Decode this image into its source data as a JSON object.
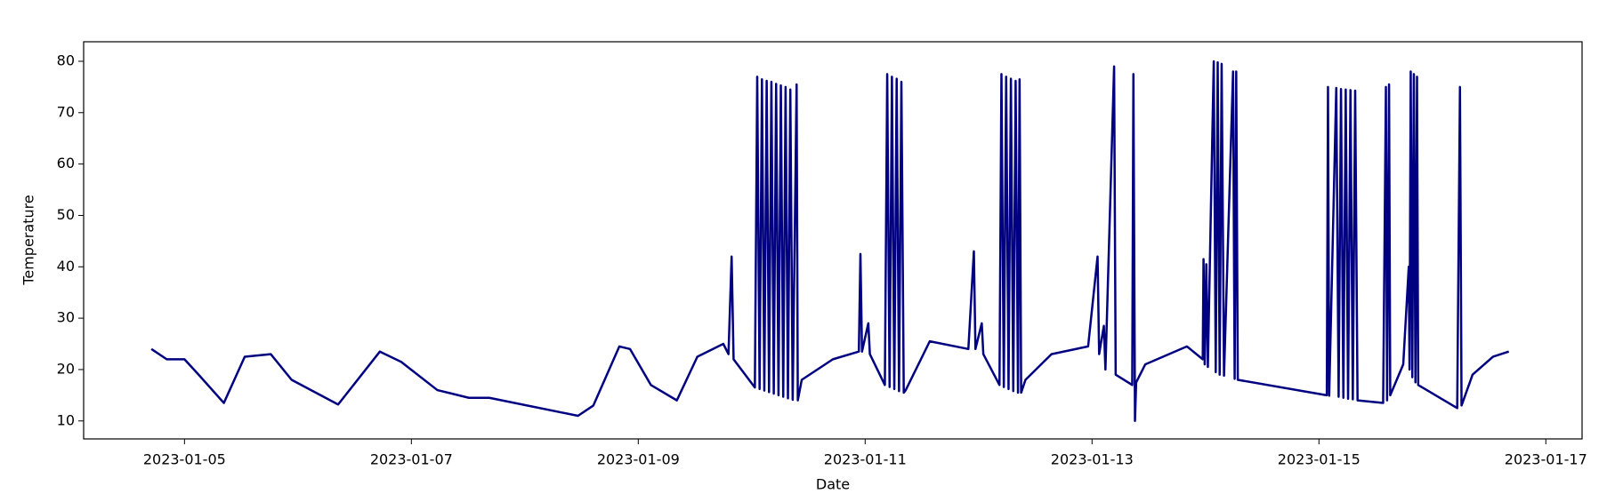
{
  "chart_data": {
    "type": "line",
    "xlabel": "Date",
    "ylabel": "Temperature",
    "xlim": [
      "2023-01-04T02:40",
      "2023-01-17T07:40"
    ],
    "xticks": [
      "2023-01-05",
      "2023-01-07",
      "2023-01-09",
      "2023-01-11",
      "2023-01-13",
      "2023-01-15",
      "2023-01-17"
    ],
    "ylim": [
      6.5,
      83.8
    ],
    "yticks": [
      10,
      20,
      30,
      40,
      50,
      60,
      70,
      80
    ],
    "grid": false,
    "x": [
      "2023-01-04T17:00",
      "2023-01-04T20:15",
      "2023-01-05T00:00",
      "2023-01-05T03:00",
      "2023-01-05T08:20",
      "2023-01-05T12:45",
      "2023-01-05T18:15",
      "2023-01-05T22:40",
      "2023-01-06T08:30",
      "2023-01-06T17:20",
      "2023-01-06T21:50",
      "2023-01-07T05:30",
      "2023-01-07T12:10",
      "2023-01-07T16:30",
      "2023-01-08T11:15",
      "2023-01-08T14:30",
      "2023-01-08T20:00",
      "2023-01-08T22:15",
      "2023-01-09T02:40",
      "2023-01-09T08:10",
      "2023-01-09T12:30",
      "2023-01-09T18:00",
      "2023-01-09T19:05",
      "2023-01-09T19:45",
      "2023-01-09T20:10",
      "2023-01-10T00:40",
      "2023-01-10T01:10",
      "2023-01-10T01:40",
      "2023-01-10T02:10",
      "2023-01-10T02:40",
      "2023-01-10T03:10",
      "2023-01-10T03:40",
      "2023-01-10T04:10",
      "2023-01-10T04:40",
      "2023-01-10T05:10",
      "2023-01-10T05:40",
      "2023-01-10T06:10",
      "2023-01-10T06:40",
      "2023-01-10T07:10",
      "2023-01-10T07:40",
      "2023-01-10T08:10",
      "2023-01-10T08:40",
      "2023-01-10T09:30",
      "2023-01-10T09:45",
      "2023-01-10T10:35",
      "2023-01-10T17:10",
      "2023-01-10T22:40",
      "2023-01-10T23:00",
      "2023-01-10T23:20",
      "2023-01-11T00:40",
      "2023-01-11T01:00",
      "2023-01-11T04:10",
      "2023-01-11T04:40",
      "2023-01-11T05:10",
      "2023-01-11T05:40",
      "2023-01-11T06:10",
      "2023-01-11T06:40",
      "2023-01-11T07:10",
      "2023-01-11T07:40",
      "2023-01-11T08:10",
      "2023-01-11T08:35",
      "2023-01-11T13:40",
      "2023-01-11T21:50",
      "2023-01-11T23:00",
      "2023-01-11T23:20",
      "2023-01-12T00:40",
      "2023-01-12T01:00",
      "2023-01-12T04:25",
      "2023-01-12T04:50",
      "2023-01-12T05:20",
      "2023-01-12T05:50",
      "2023-01-12T06:20",
      "2023-01-12T06:50",
      "2023-01-12T07:20",
      "2023-01-12T07:50",
      "2023-01-12T08:20",
      "2023-01-12T08:40",
      "2023-01-12T09:00",
      "2023-01-12T09:55",
      "2023-01-12T15:25",
      "2023-01-12T23:10",
      "2023-01-13T01:10",
      "2023-01-13T01:30",
      "2023-01-13T02:30",
      "2023-01-13T02:50",
      "2023-01-13T04:40",
      "2023-01-13T05:00",
      "2023-01-13T08:30",
      "2023-01-13T08:45",
      "2023-01-13T09:05",
      "2023-01-13T09:20",
      "2023-01-13T11:15",
      "2023-01-13T20:05",
      "2023-01-13T23:25",
      "2023-01-13T23:35",
      "2023-01-13T23:50",
      "2023-01-14T00:10",
      "2023-01-14T00:30",
      "2023-01-14T01:45",
      "2023-01-14T02:10",
      "2023-01-14T02:35",
      "2023-01-14T03:00",
      "2023-01-14T03:25",
      "2023-01-14T03:55",
      "2023-01-14T05:50",
      "2023-01-14T06:10",
      "2023-01-14T06:30",
      "2023-01-14T06:50",
      "2023-01-15T01:40",
      "2023-01-15T01:55",
      "2023-01-15T02:10",
      "2023-01-15T03:40",
      "2023-01-15T04:10",
      "2023-01-15T04:40",
      "2023-01-15T05:10",
      "2023-01-15T05:40",
      "2023-01-15T06:10",
      "2023-01-15T06:40",
      "2023-01-15T07:10",
      "2023-01-15T07:40",
      "2023-01-15T08:10",
      "2023-01-15T13:35",
      "2023-01-15T14:10",
      "2023-01-15T14:25",
      "2023-01-15T14:50",
      "2023-01-15T15:05",
      "2023-01-15T17:50",
      "2023-01-15T19:00",
      "2023-01-15T19:10",
      "2023-01-15T19:25",
      "2023-01-15T19:45",
      "2023-01-15T20:05",
      "2023-01-15T20:25",
      "2023-01-15T20:45",
      "2023-01-15T21:00",
      "2023-01-16T05:15",
      "2023-01-16T05:50",
      "2023-01-16T06:10",
      "2023-01-16T08:30",
      "2023-01-16T12:50",
      "2023-01-16T16:10"
    ],
    "series": [
      {
        "name": "Temperature",
        "color": "#000080",
        "values": [
          24,
          22,
          22,
          19,
          13.5,
          22.5,
          23,
          18,
          13.2,
          23.5,
          21.5,
          16,
          14.5,
          14.5,
          11,
          13,
          24.5,
          24,
          17,
          14,
          22.5,
          25,
          23,
          42,
          22,
          16.5,
          77,
          16.2,
          76.5,
          15.9,
          76.2,
          15.6,
          76,
          15.3,
          75.6,
          15,
          75.3,
          14.7,
          75,
          14.4,
          74.5,
          14.1,
          75.5,
          14,
          18,
          22,
          23.5,
          42.5,
          23.5,
          29,
          23,
          17,
          77.5,
          16.6,
          77,
          16.2,
          76.6,
          15.8,
          76,
          15.5,
          16,
          25.5,
          24,
          43,
          24,
          29,
          23,
          17,
          77.5,
          16.6,
          77,
          16.2,
          76.6,
          15.8,
          76.2,
          15.5,
          76.5,
          15.5,
          18,
          23,
          24.5,
          42,
          23,
          28.5,
          20,
          79,
          19,
          17,
          77.5,
          10,
          17.5,
          21,
          24.5,
          22,
          41.5,
          21,
          40.5,
          20.5,
          80,
          19.5,
          79.8,
          19,
          79.5,
          18.8,
          78,
          18.2,
          78,
          18,
          15,
          75,
          14.9,
          74.8,
          14.7,
          74.6,
          14.5,
          74.5,
          14.3,
          74.4,
          14.2,
          74.3,
          14,
          13.5,
          75,
          14,
          75.5,
          15,
          21,
          40,
          20,
          78,
          18.5,
          77.5,
          17.5,
          77,
          17,
          12.5,
          75,
          13,
          19,
          22.5,
          23.5
        ]
      }
    ]
  }
}
